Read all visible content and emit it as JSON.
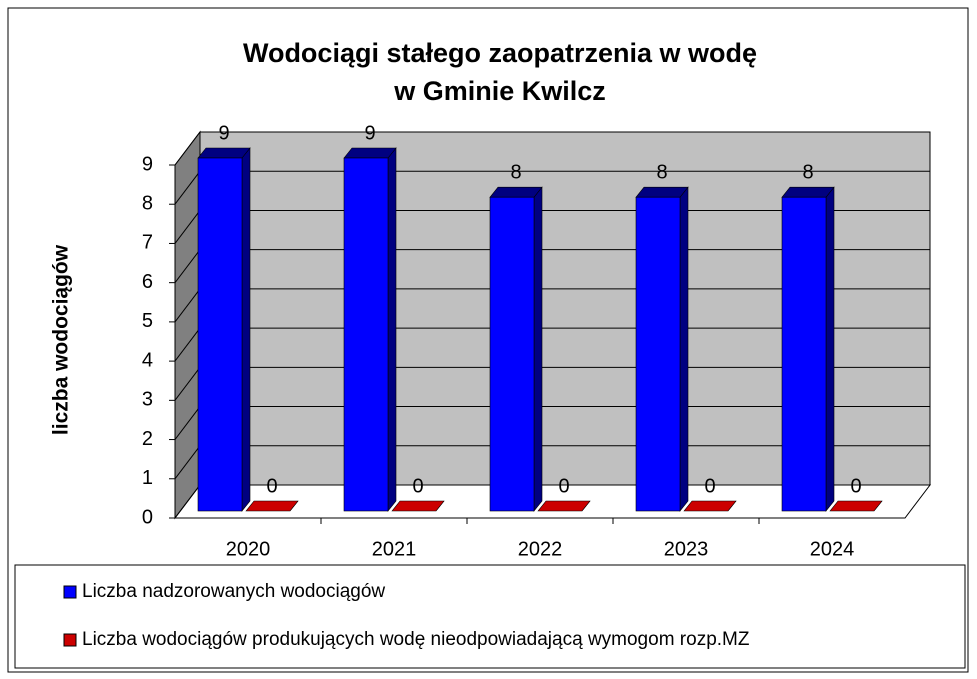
{
  "chart_data": {
    "type": "bar3d",
    "title": [
      "Wodociągi stałego zaopatrzenia w wodę",
      "w Gminie Kwilcz"
    ],
    "y_label": "liczba wodociągów",
    "categories": [
      "2020",
      "2021",
      "2022",
      "2023",
      "2024"
    ],
    "series": [
      {
        "name": "Liczba nadzorowanych wodociągów",
        "color": "#0000ff",
        "values": [
          9,
          9,
          8,
          8,
          8
        ]
      },
      {
        "name": "Liczba wodociągów produkujących wodę nieodpowiadającą wymogom rozp.MZ",
        "color": "#cc0000",
        "values": [
          0,
          0,
          0,
          0,
          0
        ]
      }
    ],
    "ylim": [
      0,
      9
    ],
    "yticks": [
      0,
      1,
      2,
      3,
      4,
      5,
      6,
      7,
      8,
      9
    ],
    "grid": true
  }
}
